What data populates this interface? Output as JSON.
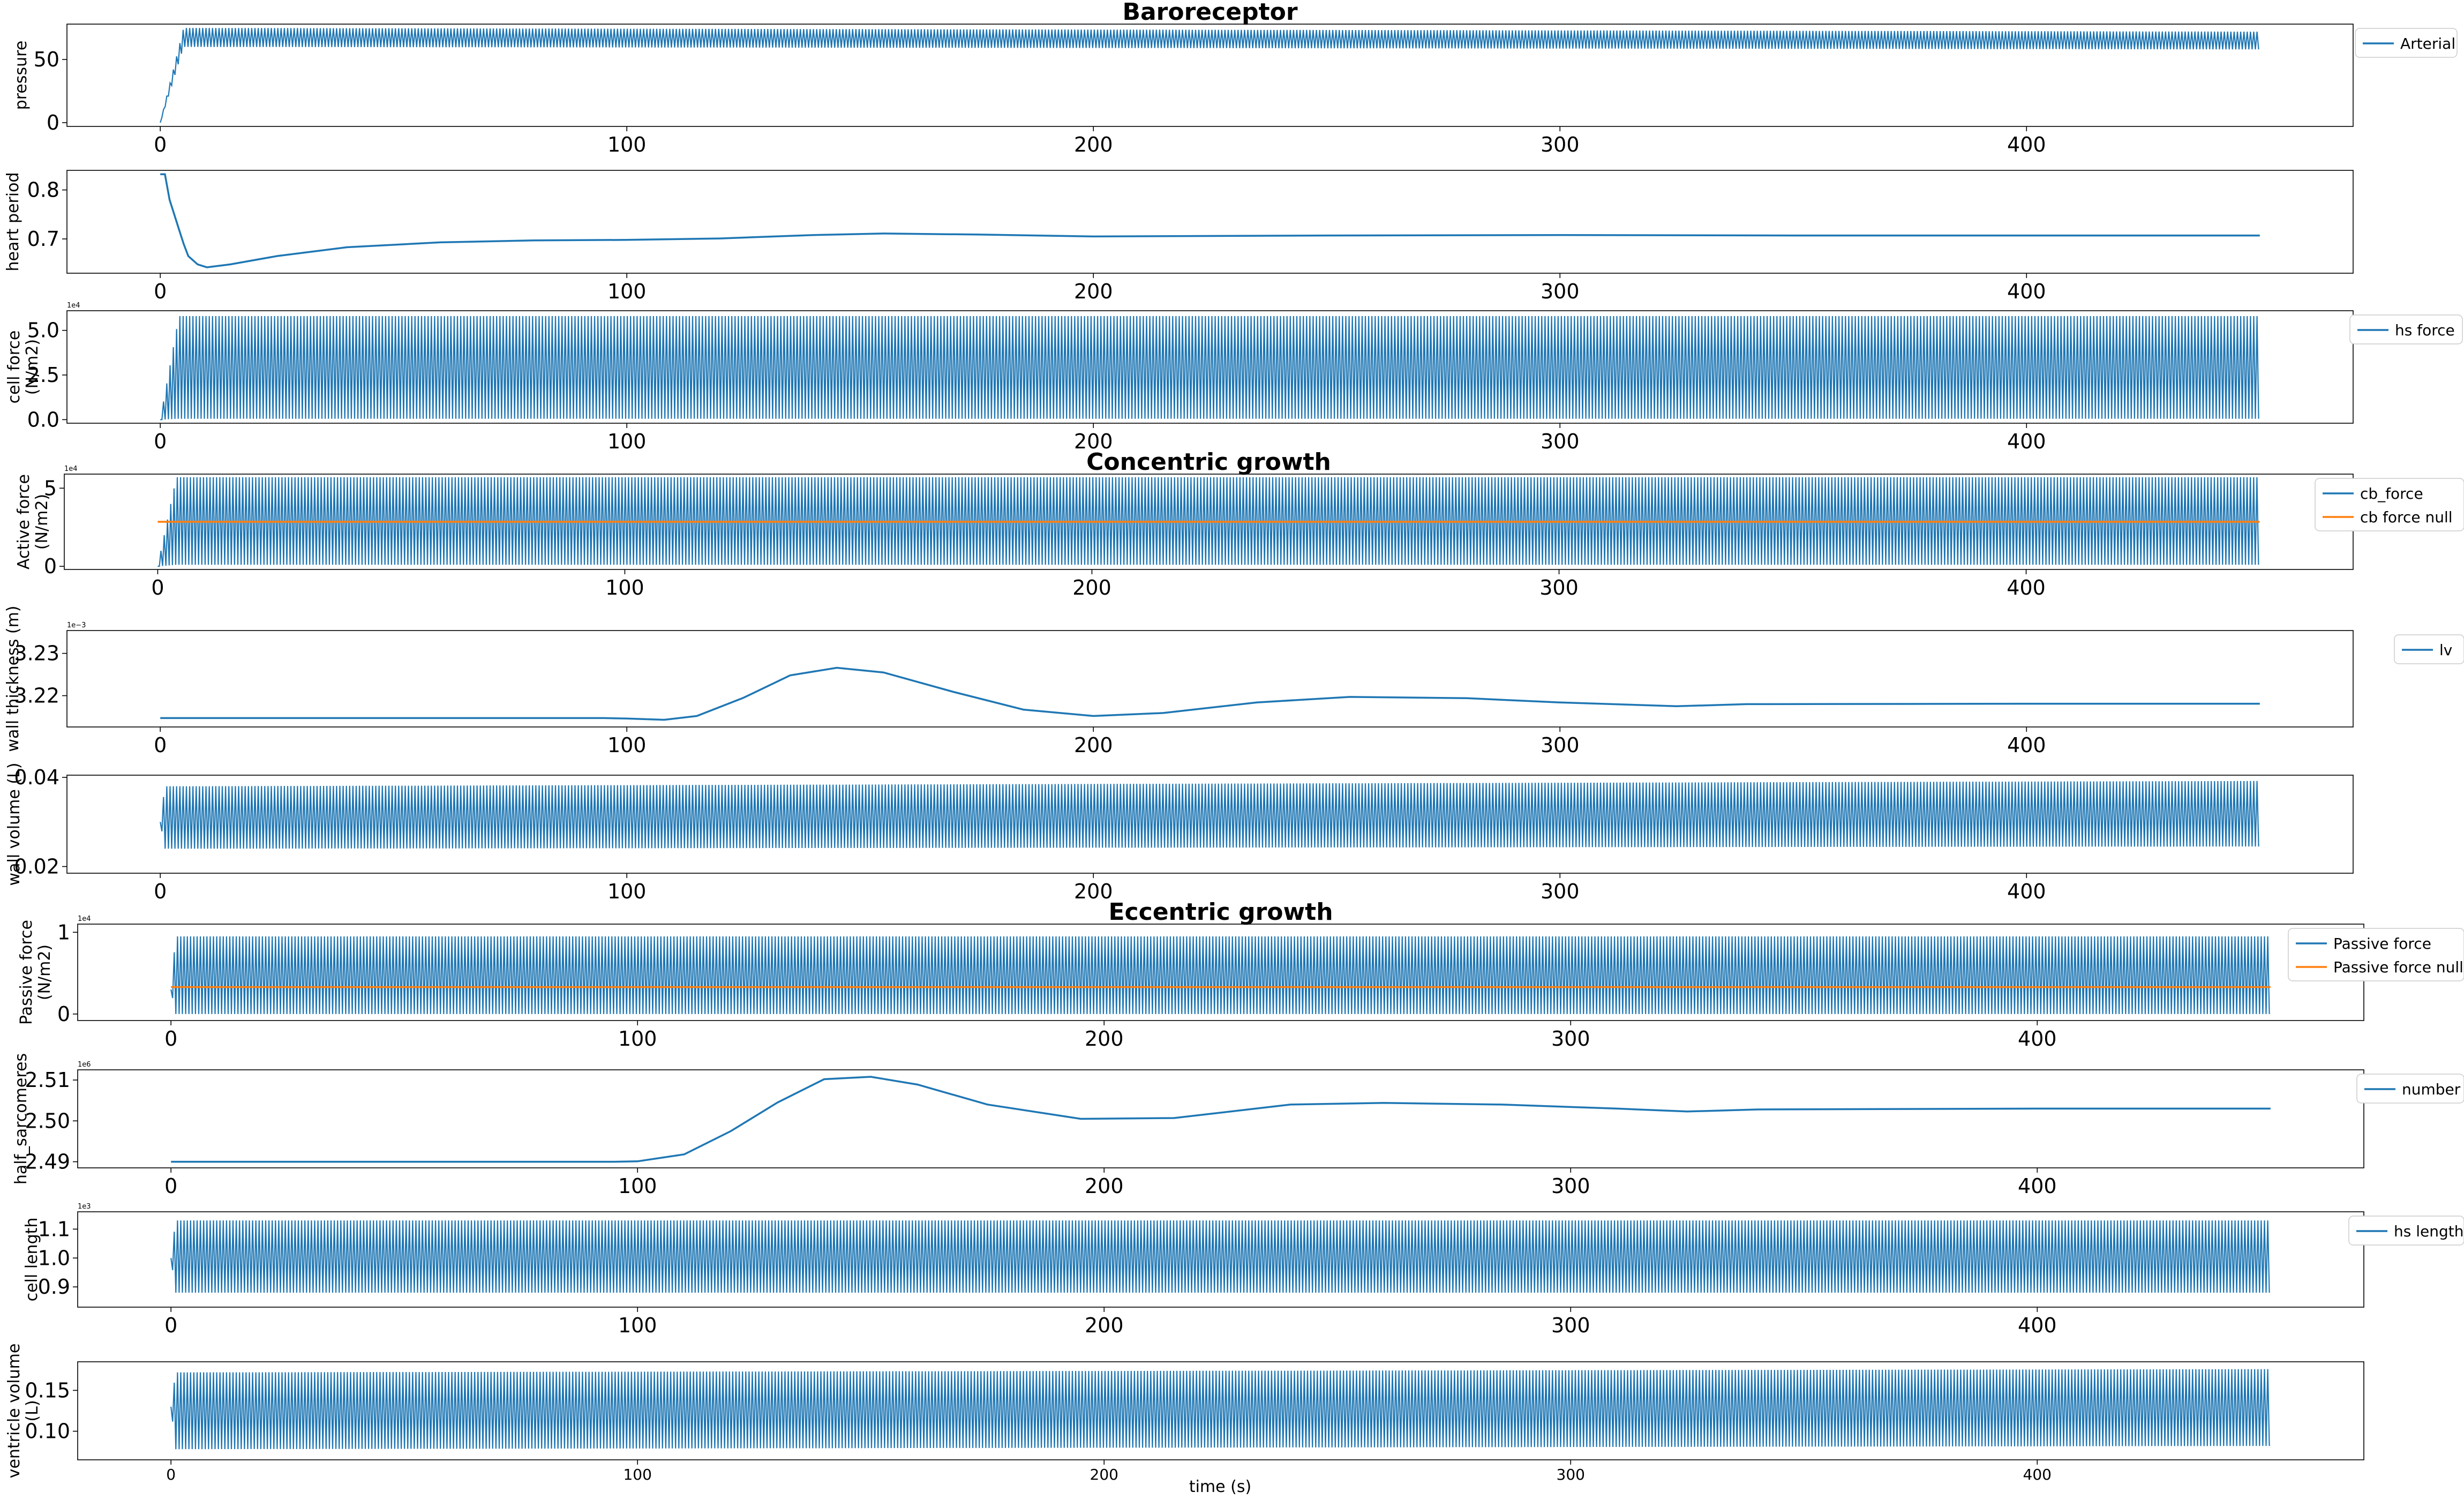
{
  "figure": {
    "xlabel": "time (s)",
    "colors": {
      "blue": "#1f77b4",
      "orange": "#ff7f0e"
    }
  },
  "chart_data": [
    {
      "type": "line",
      "title": "Baroreceptor",
      "ylabel": [
        "pressure"
      ],
      "y_exponent": "",
      "xlim": [
        -20,
        470
      ],
      "ylim": [
        -3,
        78
      ],
      "xticks": [
        0,
        100,
        200,
        300,
        400
      ],
      "yticks": [
        0,
        50
      ],
      "ytick_labels": [
        "0",
        "50"
      ],
      "legend_position": "top-right outside",
      "series": [
        {
          "name": "Arterial",
          "color": "#1f77b4",
          "kind": "oscillation",
          "x_range": [
            0,
            450
          ],
          "start_value": 0,
          "rise_time": 5,
          "upper": [
            75,
            72
          ],
          "lower": [
            60,
            58
          ],
          "period": 0.7
        }
      ]
    },
    {
      "type": "line",
      "title": "",
      "ylabel": [
        "heart period"
      ],
      "y_exponent": "",
      "xlim": [
        -20,
        470
      ],
      "ylim": [
        0.63,
        0.84
      ],
      "xticks": [
        0,
        100,
        200,
        300,
        400
      ],
      "yticks": [
        0.7,
        0.8
      ],
      "ytick_labels": [
        "0.7",
        "0.8"
      ],
      "legend_position": "",
      "series": [
        {
          "name": "",
          "color": "#1f77b4",
          "kind": "curve",
          "points": [
            [
              0,
              0.832
            ],
            [
              1,
              0.832
            ],
            [
              2,
              0.78
            ],
            [
              3,
              0.75
            ],
            [
              4,
              0.72
            ],
            [
              5,
              0.69
            ],
            [
              6,
              0.665
            ],
            [
              8,
              0.648
            ],
            [
              10,
              0.642
            ],
            [
              15,
              0.648
            ],
            [
              25,
              0.665
            ],
            [
              40,
              0.683
            ],
            [
              60,
              0.693
            ],
            [
              80,
              0.697
            ],
            [
              100,
              0.698
            ],
            [
              120,
              0.701
            ],
            [
              140,
              0.708
            ],
            [
              155,
              0.711
            ],
            [
              175,
              0.709
            ],
            [
              200,
              0.705
            ],
            [
              250,
              0.707
            ],
            [
              300,
              0.708
            ],
            [
              350,
              0.707
            ],
            [
              400,
              0.707
            ],
            [
              450,
              0.707
            ]
          ]
        }
      ]
    },
    {
      "type": "line",
      "title": "",
      "ylabel": [
        "cell force",
        "(N/m2)"
      ],
      "y_exponent": "1e4",
      "xlim": [
        -20,
        470
      ],
      "ylim": [
        -0.2,
        6.1
      ],
      "xticks": [
        0,
        100,
        200,
        300,
        400
      ],
      "yticks": [
        0,
        2.5,
        5
      ],
      "ytick_labels": [
        "0.0",
        "2.5",
        "5.0"
      ],
      "legend_position": "top-right outside",
      "series": [
        {
          "name": "hs force",
          "color": "#1f77b4",
          "kind": "oscillation",
          "x_range": [
            0,
            450
          ],
          "start_value": 0,
          "rise_time": 4,
          "upper": [
            5.8,
            5.8
          ],
          "lower": [
            0.05,
            0.05
          ],
          "period": 0.7
        }
      ]
    },
    {
      "type": "line",
      "title": "Concentric growth",
      "ylabel": [
        "Active force",
        "(N/m2)"
      ],
      "y_exponent": "1e4",
      "xlim": [
        -20,
        470
      ],
      "ylim": [
        -0.2,
        5.9
      ],
      "xticks": [
        0,
        100,
        200,
        300,
        400
      ],
      "yticks": [
        0,
        5
      ],
      "ytick_labels": [
        "0",
        "5"
      ],
      "legend_position": "top-right outside",
      "series": [
        {
          "name": "cb_force",
          "color": "#1f77b4",
          "kind": "oscillation",
          "x_range": [
            0,
            450
          ],
          "start_value": 0,
          "rise_time": 4,
          "upper": [
            5.7,
            5.7
          ],
          "lower": [
            0.1,
            0.1
          ],
          "period": 0.7
        },
        {
          "name": "cb force null",
          "color": "#ff7f0e",
          "kind": "constant",
          "x_range": [
            0,
            450
          ],
          "value": 2.85
        }
      ]
    },
    {
      "type": "line",
      "title": "",
      "ylabel": [
        "wall thickness (m)"
      ],
      "y_exponent": "1e−3",
      "xlim": [
        -20,
        470
      ],
      "ylim": [
        3.2126,
        3.2354
      ],
      "xticks": [
        0,
        100,
        200,
        300,
        400
      ],
      "yticks": [
        3.22,
        3.23
      ],
      "ytick_labels": [
        "3.22",
        "3.23"
      ],
      "legend_position": "top-right outside",
      "series": [
        {
          "name": "lv",
          "color": "#1f77b4",
          "kind": "curve",
          "points": [
            [
              0,
              3.2147
            ],
            [
              95,
              3.2147
            ],
            [
              100,
              3.2146
            ],
            [
              108,
              3.2143
            ],
            [
              115,
              3.2152
            ],
            [
              125,
              3.2195
            ],
            [
              135,
              3.2248
            ],
            [
              145,
              3.2266
            ],
            [
              155,
              3.2255
            ],
            [
              170,
              3.2209
            ],
            [
              185,
              3.2167
            ],
            [
              200,
              3.2152
            ],
            [
              215,
              3.2159
            ],
            [
              235,
              3.2184
            ],
            [
              255,
              3.2197
            ],
            [
              280,
              3.2194
            ],
            [
              300,
              3.2184
            ],
            [
              325,
              3.2175
            ],
            [
              340,
              3.218
            ],
            [
              400,
              3.2181
            ],
            [
              450,
              3.2181
            ]
          ]
        }
      ]
    },
    {
      "type": "line",
      "title": "",
      "ylabel": [
        "wall volume (L)"
      ],
      "y_exponent": "",
      "xlim": [
        -20,
        470
      ],
      "ylim": [
        0.0185,
        0.0405
      ],
      "xticks": [
        0,
        100,
        200,
        300,
        400
      ],
      "yticks": [
        0.02,
        0.04
      ],
      "ytick_labels": [
        "0.02",
        "0.04"
      ],
      "legend_position": "",
      "series": [
        {
          "name": "",
          "color": "#1f77b4",
          "kind": "oscillation",
          "x_range": [
            0,
            450
          ],
          "start_value": 0.03,
          "rise_time": 1,
          "upper": [
            0.038,
            0.0392
          ],
          "lower": [
            0.024,
            0.0245
          ],
          "period": 0.7
        }
      ]
    },
    {
      "type": "line",
      "title": "Eccentric growth",
      "ylabel": [
        "Passive force",
        "(N/m2)"
      ],
      "y_exponent": "1e4",
      "xlim": [
        -20,
        470
      ],
      "ylim": [
        -0.08,
        1.1
      ],
      "xticks": [
        0,
        100,
        200,
        300,
        400
      ],
      "yticks": [
        0,
        1
      ],
      "ytick_labels": [
        "0",
        "1"
      ],
      "legend_position": "top-right outside",
      "series": [
        {
          "name": "Passive force",
          "color": "#1f77b4",
          "kind": "oscillation",
          "x_range": [
            0,
            450
          ],
          "start_value": 0.3,
          "rise_time": 1,
          "upper": [
            0.95,
            0.95
          ],
          "lower": [
            0.0,
            0.0
          ],
          "period": 0.7
        },
        {
          "name": "Passive force null",
          "color": "#ff7f0e",
          "kind": "constant",
          "x_range": [
            0,
            450
          ],
          "value": 0.33
        }
      ]
    },
    {
      "type": "line",
      "title": "",
      "ylabel": [
        "half_sarcomeres"
      ],
      "y_exponent": "1e6",
      "xlim": [
        -20,
        470
      ],
      "ylim": [
        2.4885,
        2.5125
      ],
      "xticks": [
        0,
        100,
        200,
        300,
        400
      ],
      "yticks": [
        2.49,
        2.5,
        2.51
      ],
      "ytick_labels": [
        "2.49",
        "2.50",
        "2.51"
      ],
      "legend_position": "top-right outside",
      "series": [
        {
          "name": "number",
          "color": "#1f77b4",
          "kind": "curve",
          "points": [
            [
              0,
              2.49
            ],
            [
              95,
              2.49
            ],
            [
              100,
              2.4901
            ],
            [
              110,
              2.4918
            ],
            [
              120,
              2.4975
            ],
            [
              130,
              2.5045
            ],
            [
              140,
              2.5102
            ],
            [
              150,
              2.5108
            ],
            [
              160,
              2.5089
            ],
            [
              175,
              2.504
            ],
            [
              195,
              2.5005
            ],
            [
              215,
              2.5007
            ],
            [
              240,
              2.504
            ],
            [
              260,
              2.5044
            ],
            [
              285,
              2.504
            ],
            [
              310,
              2.503
            ],
            [
              325,
              2.5023
            ],
            [
              340,
              2.5028
            ],
            [
              400,
              2.503
            ],
            [
              450,
              2.503
            ]
          ]
        }
      ]
    },
    {
      "type": "line",
      "title": "",
      "ylabel": [
        "cell length"
      ],
      "y_exponent": "1e3",
      "xlim": [
        -20,
        470
      ],
      "ylim": [
        0.83,
        1.16
      ],
      "xticks": [
        0,
        100,
        200,
        300,
        400
      ],
      "yticks": [
        0.9,
        1.0,
        1.1
      ],
      "ytick_labels": [
        "0.9",
        "1.0",
        "1.1"
      ],
      "legend_position": "top-right outside",
      "series": [
        {
          "name": "hs length",
          "color": "#1f77b4",
          "kind": "oscillation",
          "x_range": [
            0,
            450
          ],
          "start_value": 1.0,
          "rise_time": 1,
          "upper": [
            1.13,
            1.13
          ],
          "lower": [
            0.88,
            0.88
          ],
          "period": 0.7
        }
      ]
    },
    {
      "type": "line",
      "title": "",
      "ylabel": [
        "ventricle volume",
        "(L)"
      ],
      "y_exponent": "",
      "xlim": [
        -20,
        470
      ],
      "ylim": [
        0.065,
        0.185
      ],
      "xticks": [
        0,
        100,
        200,
        300,
        400
      ],
      "yticks": [
        0.1,
        0.15
      ],
      "ytick_labels": [
        "0.10",
        "0.15"
      ],
      "legend_position": "",
      "series": [
        {
          "name": "",
          "color": "#1f77b4",
          "kind": "oscillation",
          "x_range": [
            0,
            450
          ],
          "start_value": 0.13,
          "rise_time": 1,
          "upper": [
            0.172,
            0.176
          ],
          "lower": [
            0.078,
            0.082
          ],
          "period": 0.7
        }
      ]
    }
  ]
}
